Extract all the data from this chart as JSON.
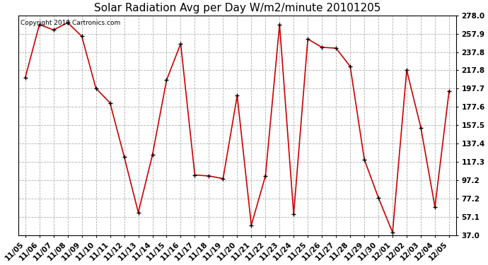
{
  "title": "Solar Radiation Avg per Day W/m2/minute 20101205",
  "copyright": "Copyright 2010 Cartronics.com",
  "labels": [
    "11/05",
    "11/06",
    "11/07",
    "11/08",
    "11/09",
    "11/10",
    "11/11",
    "11/12",
    "11/13",
    "11/14",
    "11/15",
    "11/16",
    "11/17",
    "11/18",
    "11/19",
    "11/20",
    "11/21",
    "11/22",
    "11/23",
    "11/24",
    "11/25",
    "11/26",
    "11/27",
    "11/28",
    "11/29",
    "11/30",
    "12/01",
    "12/02",
    "12/03",
    "12/04",
    "12/05"
  ],
  "values": [
    210,
    268,
    262,
    270,
    255,
    198,
    182,
    123,
    62,
    125,
    207,
    247,
    103,
    102,
    99,
    190,
    48,
    102,
    268,
    60,
    252,
    243,
    242,
    222,
    120,
    78,
    40,
    218,
    155,
    68,
    195
  ],
  "ylim": [
    37.0,
    278.0
  ],
  "yticks": [
    37.0,
    57.1,
    77.2,
    97.2,
    117.3,
    137.4,
    157.5,
    177.6,
    197.7,
    217.8,
    237.8,
    257.9,
    278.0
  ],
  "line_color": "#cc0000",
  "marker_color": "#000000",
  "bg_color": "#ffffff",
  "grid_color": "#b0b0b0",
  "title_fontsize": 11,
  "tick_fontsize": 7.5,
  "copyright_fontsize": 6.5
}
